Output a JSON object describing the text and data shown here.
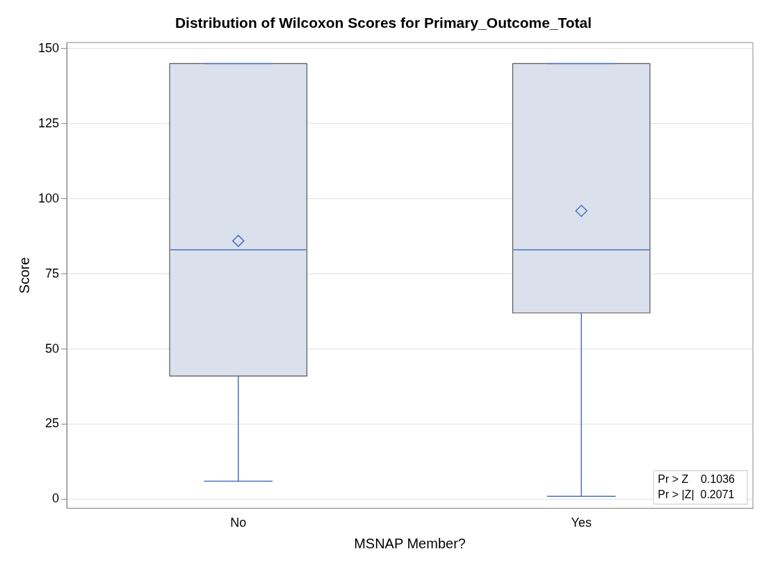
{
  "chart_data": {
    "type": "box",
    "title": "Distribution of Wilcoxon Scores for Primary_Outcome_Total",
    "xlabel": "MSNAP Member?",
    "ylabel": "Score",
    "categories": [
      "No",
      "Yes"
    ],
    "boxes": [
      {
        "low": 6,
        "q1": 41,
        "median": 83,
        "q3": 145,
        "high": 145,
        "mean": 86
      },
      {
        "low": 1,
        "q1": 62,
        "median": 83,
        "q3": 145,
        "high": 145,
        "mean": 96
      }
    ],
    "color": "#dae1ec",
    "ylim": [
      -3,
      152
    ],
    "yticks": [
      0,
      25,
      50,
      75,
      100,
      125,
      150
    ],
    "grid": "y",
    "legend": false,
    "marker": "diamond",
    "annotations": [
      "Pr > Z    0.1036",
      "Pr > |Z|  0.2071"
    ]
  }
}
